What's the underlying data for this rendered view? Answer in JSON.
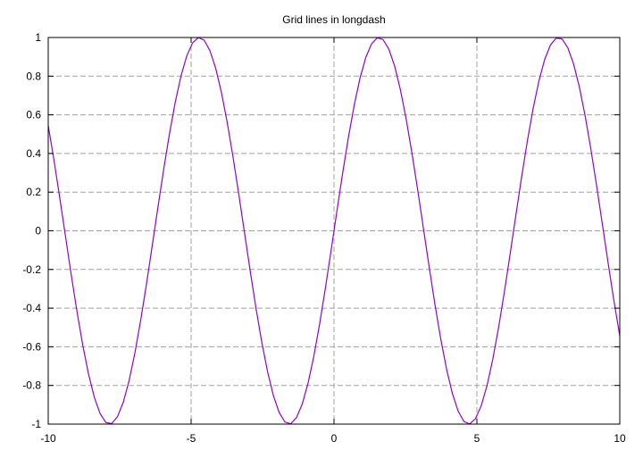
{
  "chart_data": {
    "type": "line",
    "title": "Grid lines in longdash",
    "xlabel": "",
    "ylabel": "",
    "xlim": [
      -10,
      10
    ],
    "ylim": [
      -1,
      1
    ],
    "grid": true,
    "grid_style": "longdash",
    "x_ticks": [
      -10,
      -5,
      0,
      5,
      10
    ],
    "x_tick_labels": [
      "-10",
      "-5",
      "0",
      "5",
      "10"
    ],
    "y_ticks": [
      -1,
      -0.8,
      -0.6,
      -0.4,
      -0.2,
      0,
      0.2,
      0.4,
      0.6,
      0.8,
      1
    ],
    "y_tick_labels": [
      "-1",
      "-0.8",
      "-0.6",
      "-0.4",
      "-0.2",
      "0",
      "0.2",
      "0.4",
      "0.6",
      "0.8",
      "1"
    ],
    "series": [
      {
        "name": "sin(x)",
        "function": "sin(x)",
        "color": "#9400d3",
        "samples": 100
      }
    ]
  }
}
